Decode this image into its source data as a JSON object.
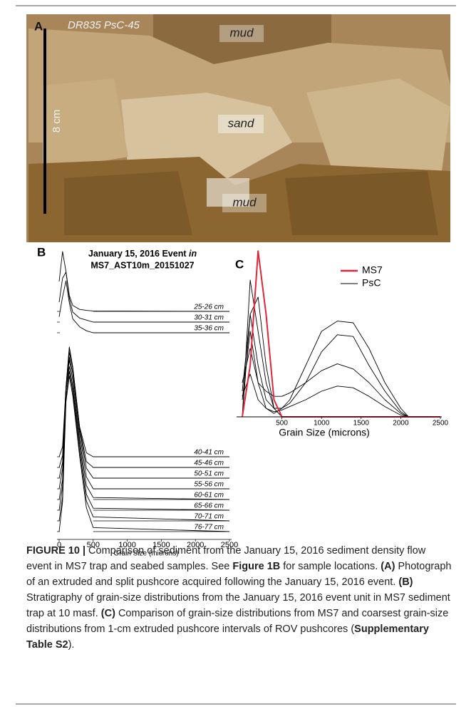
{
  "panel_a": {
    "label": "A",
    "sample": "DR835 PsC-45",
    "scale": "8 cm",
    "top": "mud",
    "middle": "sand",
    "bottom": "mud"
  },
  "chart_data": [
    {
      "type": "line",
      "panel": "B",
      "title": {
        "line1": "January 15, 2016 Event",
        "line1_italic": "in",
        "line2": "MS7_AST10m_20151027"
      },
      "x_label": "Grain Size (microns)",
      "x": [
        0,
        50,
        100,
        150,
        200,
        300,
        400,
        500,
        2500
      ],
      "xlim": [
        0,
        2500
      ],
      "xticks": [
        0,
        500,
        1000,
        1500,
        2000,
        2500
      ],
      "ylim": [
        0,
        1
      ],
      "series": [
        {
          "name": "25-26 cm",
          "color": "#000000",
          "values": [
            0.15,
            0.3,
            0.2,
            0.08,
            0.03,
            0.01,
            0.005,
            0.002,
            0
          ]
        },
        {
          "name": "30-31 cm",
          "color": "#000000",
          "values": [
            0.1,
            0.22,
            0.25,
            0.12,
            0.05,
            0.02,
            0.01,
            0,
            0
          ]
        },
        {
          "name": "35-36 cm",
          "color": "#000000",
          "values": [
            0.08,
            0.18,
            0.26,
            0.15,
            0.07,
            0.03,
            0.01,
            0,
            0
          ]
        },
        {
          "name": "40-41 cm",
          "color": "#000000",
          "values": [
            0,
            0.05,
            0.35,
            0.55,
            0.45,
            0.15,
            0.02,
            0,
            0
          ]
        },
        {
          "name": "45-46 cm",
          "color": "#000000",
          "values": [
            0,
            0.06,
            0.4,
            0.6,
            0.5,
            0.2,
            0.03,
            0,
            0
          ]
        },
        {
          "name": "50-51 cm",
          "color": "#000000",
          "values": [
            0,
            0.08,
            0.45,
            0.63,
            0.55,
            0.25,
            0.05,
            0,
            0
          ]
        },
        {
          "name": "55-56 cm",
          "color": "#000000",
          "values": [
            0,
            0.1,
            0.5,
            0.66,
            0.58,
            0.28,
            0.06,
            0,
            0
          ]
        },
        {
          "name": "60-61 cm",
          "color": "#000000",
          "values": [
            0,
            0.1,
            0.55,
            0.7,
            0.6,
            0.3,
            0.07,
            0.01,
            0
          ]
        },
        {
          "name": "65-66 cm",
          "color": "#000000",
          "values": [
            0,
            0.12,
            0.6,
            0.72,
            0.62,
            0.33,
            0.08,
            0.01,
            0
          ]
        },
        {
          "name": "70-71 cm",
          "color": "#000000",
          "values": [
            0,
            0.12,
            0.62,
            0.75,
            0.65,
            0.35,
            0.1,
            0.02,
            0
          ]
        },
        {
          "name": "76-77 cm",
          "color": "#000000",
          "values": [
            0,
            0.15,
            0.65,
            0.78,
            0.68,
            0.38,
            0.12,
            0.02,
            0
          ]
        }
      ]
    },
    {
      "type": "line",
      "panel": "C",
      "x_label": "Grain Size (microns)",
      "x": [
        0,
        100,
        200,
        300,
        400,
        500,
        600,
        800,
        1000,
        1200,
        1400,
        1600,
        1800,
        2000,
        2100,
        2500
      ],
      "xlim": [
        0,
        2500
      ],
      "xticks": [
        500,
        1000,
        1500,
        2000,
        2500
      ],
      "ylim": [
        0,
        1
      ],
      "legend": "top-right",
      "series": [
        {
          "name": "MS7",
          "color": "#e0263a",
          "values": [
            0,
            0.3,
            0.97,
            0.6,
            0.1,
            0,
            0,
            0,
            0,
            0,
            0,
            0,
            0,
            0,
            0,
            0
          ]
        },
        {
          "name": "PsC",
          "color": "#000000",
          "values": [
            0.1,
            0.5,
            0.2,
            0.05,
            0.02,
            0.05,
            0.1,
            0.3,
            0.5,
            0.56,
            0.55,
            0.4,
            0.2,
            0.05,
            0,
            0
          ]
        },
        {
          "name": "PsC",
          "color": "#000000",
          "values": [
            0.15,
            0.6,
            0.3,
            0.1,
            0.05,
            0.05,
            0.08,
            0.2,
            0.38,
            0.48,
            0.47,
            0.3,
            0.15,
            0.03,
            0,
            0
          ]
        },
        {
          "name": "PsC",
          "color": "#000000",
          "values": [
            0.2,
            0.4,
            0.2,
            0.15,
            0.12,
            0.12,
            0.14,
            0.2,
            0.27,
            0.31,
            0.28,
            0.2,
            0.1,
            0.02,
            0,
            0
          ]
        },
        {
          "name": "PsC",
          "color": "#000000",
          "values": [
            0.12,
            0.25,
            0.1,
            0.05,
            0.03,
            0.04,
            0.06,
            0.1,
            0.15,
            0.18,
            0.17,
            0.12,
            0.06,
            0.01,
            0,
            0
          ]
        },
        {
          "name": "PsC",
          "color": "#000000",
          "values": [
            0,
            0.8,
            0.5,
            0.2,
            0.05,
            0,
            0,
            0,
            0,
            0,
            0,
            0,
            0,
            0,
            0,
            0
          ]
        },
        {
          "name": "PsC",
          "color": "#000000",
          "values": [
            0,
            0.6,
            0.7,
            0.3,
            0.05,
            0,
            0,
            0,
            0,
            0,
            0,
            0,
            0,
            0,
            0,
            0
          ]
        }
      ]
    }
  ],
  "caption": {
    "runs": [
      "FIGURE 10 |",
      " Comparison of sediment from the January 15, 2016 sediment density flow event in MS7 trap and seabed samples. See ",
      "Figure 1B",
      " for sample locations. ",
      "(A)",
      " Photograph of an extruded and split pushcore acquired following the January 15, 2016 event. ",
      "(B)",
      " Stratigraphy of grain-size distributions from the January 15, 2016 event unit in MS7 sediment trap at 10 masf. ",
      "(C)",
      " Comparison of grain-size distributions from MS7 and coarsest grain-size distributions from 1-cm extruded pushcore intervals of ROV pushcores (",
      "Supplementary Table S2",
      ")."
    ]
  }
}
